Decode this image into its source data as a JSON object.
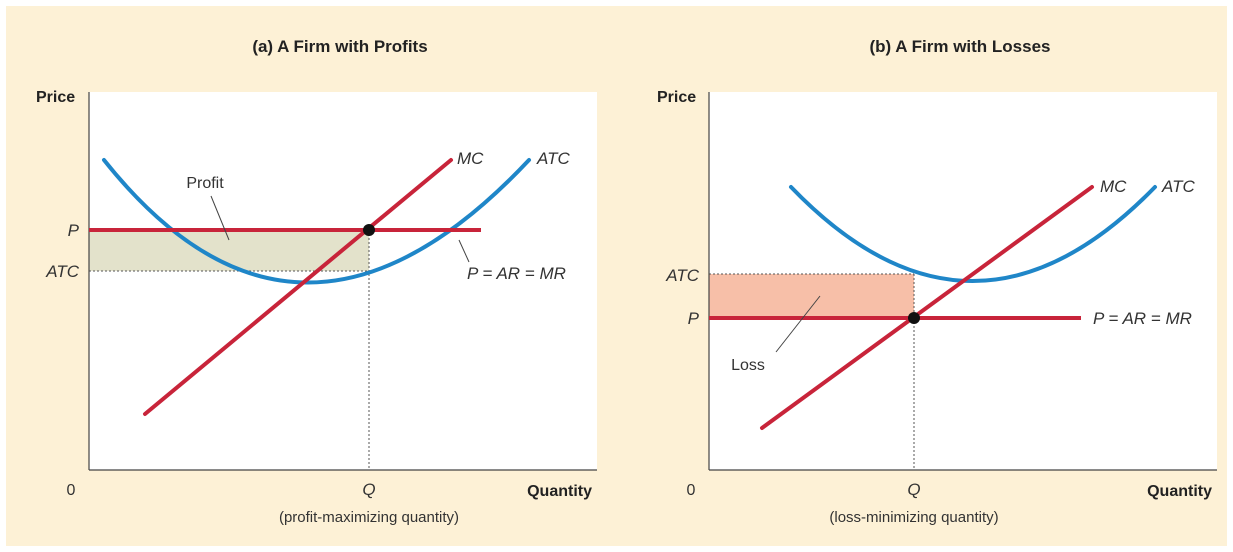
{
  "colors": {
    "background": "#fdf1d6",
    "plot": "#ffffff",
    "atc_curve": "#1f86c8",
    "mc_curve": "#c8243a",
    "price_line": "#c8243a",
    "profit_area": "#e3e2cb",
    "loss_area": "#f7bfa8"
  },
  "panel_a": {
    "title": "(a) A Firm with Profits",
    "y_axis_label": "Price",
    "x_axis_label": "Quantity",
    "origin": "0",
    "tick_p": "P",
    "tick_atc": "ATC",
    "tick_q": "Q",
    "q_note": "(profit-maximizing quantity)",
    "mc_label": "MC",
    "atc_label": "ATC",
    "price_label": "P = AR = MR",
    "area_label": "Profit"
  },
  "panel_b": {
    "title": "(b) A Firm with Losses",
    "y_axis_label": "Price",
    "x_axis_label": "Quantity",
    "origin": "0",
    "tick_p": "P",
    "tick_atc": "ATC",
    "tick_q": "Q",
    "q_note": "(loss-minimizing quantity)",
    "mc_label": "MC",
    "atc_label": "ATC",
    "price_label": "P = AR = MR",
    "area_label": "Loss"
  }
}
